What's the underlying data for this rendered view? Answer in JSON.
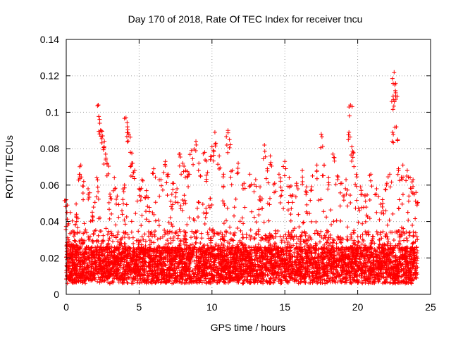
{
  "chart_data": {
    "type": "scatter",
    "title": "Day 170 of 2018, Rate Of TEC Index for receiver tncu",
    "xlabel": "GPS time / hours",
    "ylabel": "ROTI / TECUs",
    "xlim": [
      0,
      25
    ],
    "ylim": [
      0,
      0.14
    ],
    "xticks": [
      0,
      5,
      10,
      15,
      20,
      25
    ],
    "xtick_labels": [
      "0",
      "5",
      "10",
      "15",
      "20",
      "25"
    ],
    "yticks": [
      0,
      0.02,
      0.04,
      0.06,
      0.08,
      0.1,
      0.12,
      0.14
    ],
    "ytick_labels": [
      "0",
      "0.02",
      "0.04",
      "0.06",
      "0.08",
      "0.1",
      "0.12",
      "0.14"
    ],
    "grid": true,
    "marker": "+",
    "color": "#ff0000",
    "series": [
      {
        "name": "ROTI",
        "description_points": "dense cloud, approximately 0.005–0.04 TECU/s throughout 0–24 h, with sparse spikes",
        "points": [
          [
            0.0,
            0.052
          ],
          [
            0.05,
            0.045
          ],
          [
            0.1,
            0.038
          ],
          [
            0.2,
            0.029
          ],
          [
            0.3,
            0.026
          ],
          [
            0.7,
            0.044
          ],
          [
            0.9,
            0.066
          ],
          [
            1.0,
            0.071
          ],
          [
            1.2,
            0.062
          ],
          [
            1.5,
            0.058
          ],
          [
            1.8,
            0.043
          ],
          [
            2.1,
            0.064
          ],
          [
            2.2,
            0.104
          ],
          [
            2.3,
            0.094
          ],
          [
            2.35,
            0.09
          ],
          [
            2.5,
            0.087
          ],
          [
            2.6,
            0.081
          ],
          [
            2.7,
            0.077
          ],
          [
            2.8,
            0.072
          ],
          [
            3.0,
            0.055
          ],
          [
            3.3,
            0.064
          ],
          [
            3.5,
            0.054
          ],
          [
            4.0,
            0.06
          ],
          [
            4.1,
            0.097
          ],
          [
            4.2,
            0.092
          ],
          [
            4.3,
            0.088
          ],
          [
            4.4,
            0.078
          ],
          [
            4.5,
            0.072
          ],
          [
            4.7,
            0.068
          ],
          [
            5.0,
            0.058
          ],
          [
            5.2,
            0.063
          ],
          [
            5.5,
            0.057
          ],
          [
            6.0,
            0.069
          ],
          [
            6.5,
            0.063
          ],
          [
            6.8,
            0.073
          ],
          [
            7.0,
            0.066
          ],
          [
            7.3,
            0.061
          ],
          [
            7.6,
            0.058
          ],
          [
            7.8,
            0.077
          ],
          [
            8.0,
            0.072
          ],
          [
            8.2,
            0.068
          ],
          [
            8.4,
            0.066
          ],
          [
            8.6,
            0.079
          ],
          [
            8.9,
            0.084
          ],
          [
            9.1,
            0.072
          ],
          [
            9.5,
            0.078
          ],
          [
            9.7,
            0.067
          ],
          [
            10.0,
            0.081
          ],
          [
            10.1,
            0.079
          ],
          [
            10.2,
            0.089
          ],
          [
            10.5,
            0.076
          ],
          [
            10.8,
            0.066
          ],
          [
            11.1,
            0.09
          ],
          [
            11.2,
            0.085
          ],
          [
            11.4,
            0.068
          ],
          [
            11.8,
            0.072
          ],
          [
            12.2,
            0.061
          ],
          [
            12.6,
            0.066
          ],
          [
            13.0,
            0.063
          ],
          [
            13.3,
            0.059
          ],
          [
            13.6,
            0.082
          ],
          [
            13.8,
            0.069
          ],
          [
            14.0,
            0.076
          ],
          [
            14.3,
            0.061
          ],
          [
            14.6,
            0.066
          ],
          [
            14.8,
            0.057
          ],
          [
            15.0,
            0.073
          ],
          [
            15.3,
            0.064
          ],
          [
            15.8,
            0.061
          ],
          [
            16.2,
            0.068
          ],
          [
            16.5,
            0.059
          ],
          [
            16.9,
            0.065
          ],
          [
            17.2,
            0.071
          ],
          [
            17.5,
            0.088
          ],
          [
            17.7,
            0.071
          ],
          [
            18.0,
            0.064
          ],
          [
            18.3,
            0.077
          ],
          [
            18.6,
            0.065
          ],
          [
            18.9,
            0.061
          ],
          [
            19.2,
            0.063
          ],
          [
            19.4,
            0.089
          ],
          [
            19.5,
            0.104
          ],
          [
            19.6,
            0.081
          ],
          [
            19.7,
            0.078
          ],
          [
            19.9,
            0.066
          ],
          [
            20.2,
            0.059
          ],
          [
            20.5,
            0.054
          ],
          [
            20.9,
            0.066
          ],
          [
            21.3,
            0.058
          ],
          [
            21.7,
            0.052
          ],
          [
            22.0,
            0.061
          ],
          [
            22.2,
            0.066
          ],
          [
            22.4,
            0.089
          ],
          [
            22.45,
            0.107
          ],
          [
            22.5,
            0.122
          ],
          [
            22.55,
            0.115
          ],
          [
            22.6,
            0.109
          ],
          [
            22.65,
            0.092
          ],
          [
            22.8,
            0.069
          ],
          [
            23.1,
            0.071
          ],
          [
            23.4,
            0.068
          ],
          [
            23.6,
            0.064
          ],
          [
            23.8,
            0.063
          ],
          [
            24.0,
            0.056
          ]
        ]
      }
    ]
  }
}
